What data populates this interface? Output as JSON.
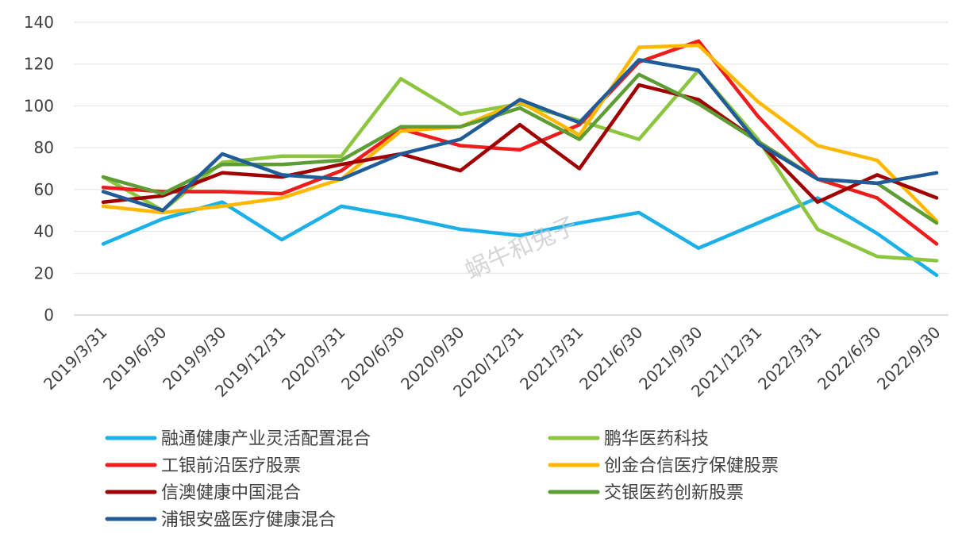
{
  "chart_data": {
    "type": "line",
    "categories": [
      "2019/3/31",
      "2019/6/30",
      "2019/9/30",
      "2019/12/31",
      "2020/3/31",
      "2020/6/30",
      "2020/9/30",
      "2020/12/31",
      "2021/3/31",
      "2021/6/30",
      "2021/9/30",
      "2021/12/31",
      "2022/3/31",
      "2022/6/30",
      "2022/9/30"
    ],
    "ylim": [
      0,
      140
    ],
    "yticks": [
      "0",
      "20",
      "40",
      "60",
      "80",
      "100",
      "120",
      "140"
    ],
    "grid": true,
    "legend_position": "bottom",
    "watermark": "蜗牛和兔子",
    "series": [
      {
        "name": "融通健康产业灵活配置混合",
        "color": "#1BB0E8",
        "values": [
          34,
          46,
          54,
          36,
          52,
          47,
          41,
          38,
          44,
          49,
          32,
          44,
          56,
          39,
          19
        ]
      },
      {
        "name": "鹏华医药科技",
        "color": "#8CC63E",
        "values": [
          66,
          50,
          73,
          76,
          76,
          113,
          96,
          101,
          93,
          84,
          117,
          84,
          41,
          28,
          26
        ]
      },
      {
        "name": "工银前沿医疗股票",
        "color": "#EE1C1C",
        "values": [
          61,
          59,
          59,
          58,
          69,
          89,
          81,
          79,
          91,
          121,
          131,
          95,
          65,
          56,
          34
        ]
      },
      {
        "name": "创金合信医疗保健股票",
        "color": "#FFB800",
        "values": [
          52,
          49,
          52,
          56,
          65,
          88,
          90,
          102,
          86,
          128,
          129,
          102,
          81,
          74,
          45
        ]
      },
      {
        "name": "信澳健康中国混合",
        "color": "#A00000",
        "values": [
          54,
          57,
          68,
          66,
          72,
          77,
          69,
          91,
          70,
          110,
          103,
          83,
          54,
          67,
          56
        ]
      },
      {
        "name": "交银医药创新股票",
        "color": "#5E9D35",
        "values": [
          66,
          58,
          72,
          72,
          74,
          90,
          90,
          99,
          84,
          115,
          101,
          83,
          65,
          63,
          44
        ]
      },
      {
        "name": "浦银安盛医疗健康混合",
        "color": "#1F5C99",
        "values": [
          59,
          50,
          77,
          67,
          65,
          77,
          84,
          103,
          92,
          122,
          117,
          82,
          65,
          63,
          68
        ]
      }
    ]
  }
}
